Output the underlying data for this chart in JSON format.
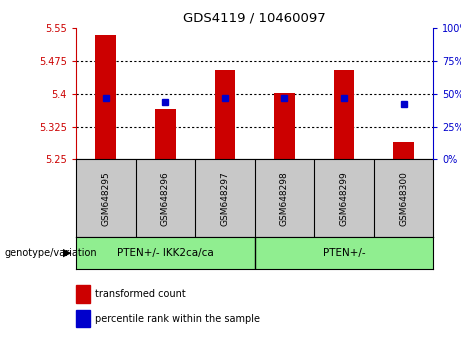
{
  "title": "GDS4119 / 10460097",
  "samples": [
    "GSM648295",
    "GSM648296",
    "GSM648297",
    "GSM648298",
    "GSM648299",
    "GSM648300"
  ],
  "bar_values": [
    5.535,
    5.365,
    5.455,
    5.401,
    5.455,
    5.29
  ],
  "percentile_values": [
    47,
    44,
    47,
    47,
    47,
    42
  ],
  "ylim_left": [
    5.25,
    5.55
  ],
  "ylim_right": [
    0,
    100
  ],
  "yticks_left": [
    5.25,
    5.325,
    5.4,
    5.475,
    5.55
  ],
  "yticks_right": [
    0,
    25,
    50,
    75,
    100
  ],
  "bar_color": "#cc0000",
  "dot_color": "#0000cc",
  "bar_bottom": 5.25,
  "groups": [
    {
      "label": "PTEN+/- IKK2ca/ca",
      "span": [
        0,
        2
      ],
      "color": "#90ee90"
    },
    {
      "label": "PTEN+/-",
      "span": [
        3,
        5
      ],
      "color": "#90ee90"
    }
  ],
  "genotype_label": "genotype/variation",
  "legend1": "transformed count",
  "legend2": "percentile rank within the sample",
  "bg_color": "#ffffff",
  "sample_bg_color": "#c8c8c8",
  "left_tick_color": "#cc0000",
  "right_tick_color": "#0000cc",
  "n_samples": 6
}
